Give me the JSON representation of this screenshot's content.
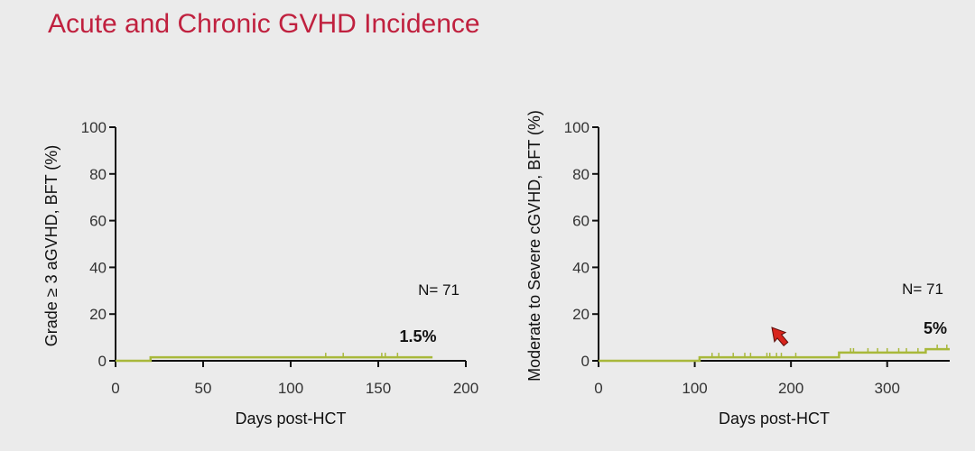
{
  "slide": {
    "title": "Acute and Chronic GVHD Incidence"
  },
  "colors": {
    "title": "#c0213f",
    "curve": "#a8b83a",
    "axis": "#111111",
    "pointer": "#d8241c"
  },
  "pointer_icon": "cursor-arrow-icon",
  "chart_data": [
    {
      "type": "line",
      "title": "",
      "xlabel": "Days post-HCT",
      "ylabel": "Grade ≥ 3 aGVHD, BFT (%)",
      "xlim": [
        0,
        200
      ],
      "ylim": [
        0,
        100
      ],
      "xticks": [
        0,
        50,
        100,
        150,
        200
      ],
      "yticks": [
        0,
        20,
        40,
        60,
        80,
        100
      ],
      "annotations": {
        "n": "N= 71",
        "final": "1.5%"
      },
      "series": [
        {
          "step": [
            [
              0,
              0
            ],
            [
              20,
              0
            ],
            [
              20,
              1.5
            ],
            [
              181,
              1.5
            ]
          ],
          "censor_marks": [
            120,
            130,
            152,
            154,
            161
          ]
        }
      ]
    },
    {
      "type": "line",
      "title": "",
      "xlabel": "Days post-HCT",
      "ylabel": "Moderate to Severe cGVHD, BFT (%)",
      "xlim": [
        0,
        365
      ],
      "ylim": [
        0,
        100
      ],
      "xticks": [
        0,
        100,
        200,
        300
      ],
      "yticks": [
        0,
        20,
        40,
        60,
        80,
        100
      ],
      "annotations": {
        "n": "N= 71",
        "final": "5%"
      },
      "series": [
        {
          "step": [
            [
              0,
              0
            ],
            [
              105,
              0
            ],
            [
              105,
              1.5
            ],
            [
              250,
              1.5
            ],
            [
              250,
              3.5
            ],
            [
              340,
              3.5
            ],
            [
              340,
              5
            ],
            [
              365,
              5
            ]
          ],
          "censor_marks": [
            118,
            125,
            140,
            152,
            158,
            175,
            178,
            185,
            190,
            205,
            262,
            265,
            280,
            290,
            300,
            312,
            320,
            332,
            352,
            362
          ]
        }
      ]
    }
  ]
}
